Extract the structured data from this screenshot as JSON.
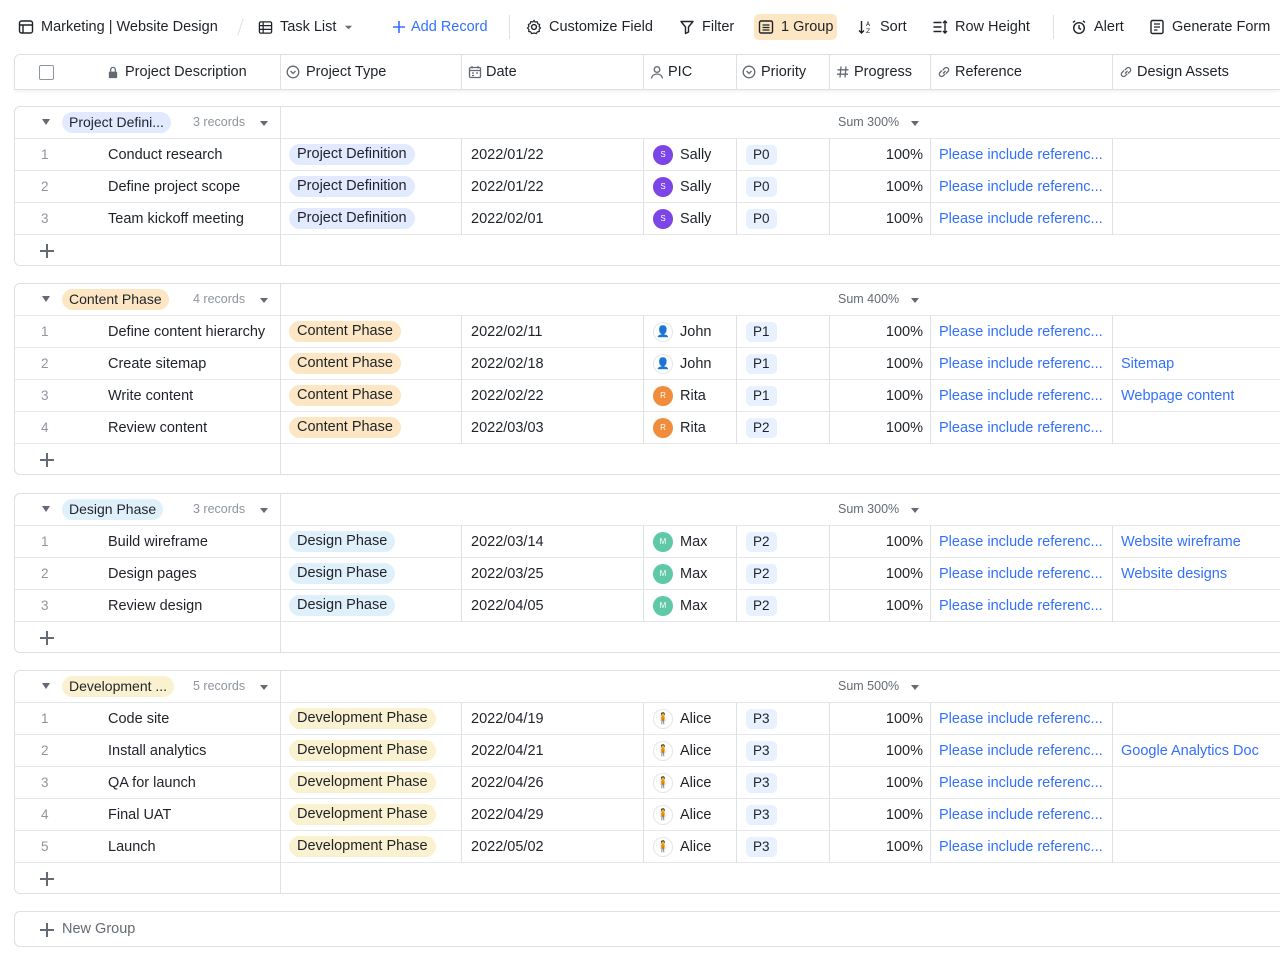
{
  "toolbar": {
    "title": "Marketing | Website Design",
    "view": "Task List",
    "add_record": "Add Record",
    "customize_field": "Customize Field",
    "filter": "Filter",
    "group": "1 Group",
    "sort": "Sort",
    "row_height": "Row Height",
    "alert": "Alert",
    "generate_form": "Generate Form"
  },
  "columns": {
    "description": "Project Description",
    "type": "Project Type",
    "date": "Date",
    "pic": "PIC",
    "priority": "Priority",
    "progress": "Progress",
    "reference": "Reference",
    "assets": "Design Assets"
  },
  "colors": {
    "accent": "#3370ff",
    "group_def": "#e1eaff",
    "group_content": "#fde6c4",
    "group_design": "#dff0fb",
    "group_dev": "#faf1d1"
  },
  "groups": [
    {
      "name": "Project Defini...",
      "count": "3 records",
      "sum": "Sum 300%",
      "color": "#e1eaff",
      "rows": [
        {
          "num": "1",
          "desc": "Conduct research",
          "type": "Project Definition",
          "date": "2022/01/22",
          "pic": "Sally",
          "initial": "S",
          "av": "av-s",
          "prio": "P0",
          "progress": "100%",
          "ref": "Please include referenc...",
          "assets": ""
        },
        {
          "num": "2",
          "desc": "Define project scope",
          "type": "Project Definition",
          "date": "2022/01/22",
          "pic": "Sally",
          "initial": "S",
          "av": "av-s",
          "prio": "P0",
          "progress": "100%",
          "ref": "Please include referenc...",
          "assets": ""
        },
        {
          "num": "3",
          "desc": "Team kickoff meeting",
          "type": "Project Definition",
          "date": "2022/02/01",
          "pic": "Sally",
          "initial": "S",
          "av": "av-s",
          "prio": "P0",
          "progress": "100%",
          "ref": "Please include referenc...",
          "assets": ""
        }
      ]
    },
    {
      "name": "Content Phase",
      "count": "4 records",
      "sum": "Sum 400%",
      "color": "#fde6c4",
      "rows": [
        {
          "num": "1",
          "desc": "Define content hierarchy",
          "type": "Content Phase",
          "date": "2022/02/11",
          "pic": "John",
          "initial": "👤",
          "av": "av-j",
          "prio": "P1",
          "progress": "100%",
          "ref": "Please include referenc...",
          "assets": ""
        },
        {
          "num": "2",
          "desc": "Create sitemap",
          "type": "Content Phase",
          "date": "2022/02/18",
          "pic": "John",
          "initial": "👤",
          "av": "av-j",
          "prio": "P1",
          "progress": "100%",
          "ref": "Please include referenc...",
          "assets": "Sitemap"
        },
        {
          "num": "3",
          "desc": "Write content",
          "type": "Content Phase",
          "date": "2022/02/22",
          "pic": "Rita",
          "initial": "R",
          "av": "av-r",
          "prio": "P1",
          "progress": "100%",
          "ref": "Please include referenc...",
          "assets": "Webpage content"
        },
        {
          "num": "4",
          "desc": "Review content",
          "type": "Content Phase",
          "date": "2022/03/03",
          "pic": "Rita",
          "initial": "R",
          "av": "av-r",
          "prio": "P2",
          "progress": "100%",
          "ref": "Please include referenc...",
          "assets": ""
        }
      ]
    },
    {
      "name": "Design Phase",
      "count": "3 records",
      "sum": "Sum 300%",
      "color": "#dff0fb",
      "rows": [
        {
          "num": "1",
          "desc": "Build wireframe",
          "type": "Design Phase",
          "date": "2022/03/14",
          "pic": "Max",
          "initial": "M",
          "av": "av-m",
          "prio": "P2",
          "progress": "100%",
          "ref": "Please include referenc...",
          "assets": "Website wireframe"
        },
        {
          "num": "2",
          "desc": "Design pages",
          "type": "Design Phase",
          "date": "2022/03/25",
          "pic": "Max",
          "initial": "M",
          "av": "av-m",
          "prio": "P2",
          "progress": "100%",
          "ref": "Please include referenc...",
          "assets": "Website designs"
        },
        {
          "num": "3",
          "desc": "Review design",
          "type": "Design Phase",
          "date": "2022/04/05",
          "pic": "Max",
          "initial": "M",
          "av": "av-m",
          "prio": "P2",
          "progress": "100%",
          "ref": "Please include referenc...",
          "assets": ""
        }
      ]
    },
    {
      "name": "Development ...",
      "count": "5 records",
      "sum": "Sum 500%",
      "color": "#faf1d1",
      "rows": [
        {
          "num": "1",
          "desc": "Code site",
          "type": "Development Phase",
          "date": "2022/04/19",
          "pic": "Alice",
          "initial": "🧍",
          "av": "av-a",
          "prio": "P3",
          "progress": "100%",
          "ref": "Please include referenc...",
          "assets": ""
        },
        {
          "num": "2",
          "desc": "Install analytics",
          "type": "Development Phase",
          "date": "2022/04/21",
          "pic": "Alice",
          "initial": "🧍",
          "av": "av-a",
          "prio": "P3",
          "progress": "100%",
          "ref": "Please include referenc...",
          "assets": "Google Analytics Doc"
        },
        {
          "num": "3",
          "desc": "QA for launch",
          "type": "Development Phase",
          "date": "2022/04/26",
          "pic": "Alice",
          "initial": "🧍",
          "av": "av-a",
          "prio": "P3",
          "progress": "100%",
          "ref": "Please include referenc...",
          "assets": ""
        },
        {
          "num": "4",
          "desc": "Final UAT",
          "type": "Development Phase",
          "date": "2022/04/29",
          "pic": "Alice",
          "initial": "🧍",
          "av": "av-a",
          "prio": "P3",
          "progress": "100%",
          "ref": "Please include referenc...",
          "assets": ""
        },
        {
          "num": "5",
          "desc": "Launch",
          "type": "Development Phase",
          "date": "2022/05/02",
          "pic": "Alice",
          "initial": "🧍",
          "av": "av-a",
          "prio": "P3",
          "progress": "100%",
          "ref": "Please include referenc...",
          "assets": ""
        }
      ]
    }
  ],
  "new_group": "New Group"
}
